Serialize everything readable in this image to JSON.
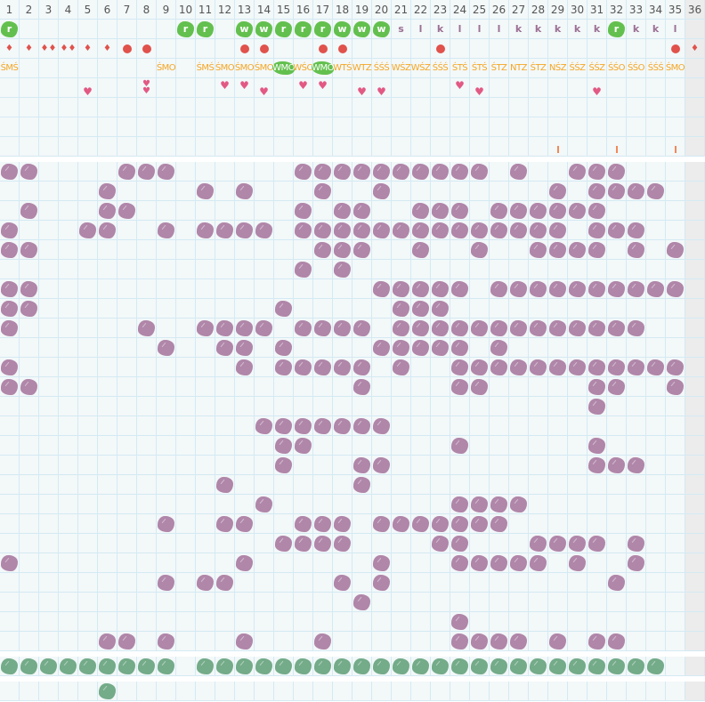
{
  "header": {
    "columns": [
      "1",
      "2",
      "3",
      "4",
      "5",
      "6",
      "7",
      "8",
      "9",
      "10",
      "11",
      "12",
      "13",
      "14",
      "15",
      "16",
      "17",
      "18",
      "19",
      "20",
      "21",
      "22",
      "23",
      "24",
      "25",
      "26",
      "27",
      "28",
      "29",
      "30",
      "31",
      "32",
      "33",
      "34",
      "35",
      "36"
    ]
  },
  "letter_row": [
    {
      "col": 1,
      "text": "r",
      "style": "green"
    },
    {
      "col": 10,
      "text": "r",
      "style": "green"
    },
    {
      "col": 11,
      "text": "r",
      "style": "green"
    },
    {
      "col": 13,
      "text": "w",
      "style": "green"
    },
    {
      "col": 14,
      "text": "w",
      "style": "green"
    },
    {
      "col": 15,
      "text": "r",
      "style": "green"
    },
    {
      "col": 16,
      "text": "r",
      "style": "green"
    },
    {
      "col": 17,
      "text": "r",
      "style": "green"
    },
    {
      "col": 18,
      "text": "w",
      "style": "green"
    },
    {
      "col": 19,
      "text": "w",
      "style": "green"
    },
    {
      "col": 20,
      "text": "w",
      "style": "green"
    },
    {
      "col": 21,
      "text": "s",
      "style": "plain"
    },
    {
      "col": 22,
      "text": "l",
      "style": "plain"
    },
    {
      "col": 23,
      "text": "k",
      "style": "plain"
    },
    {
      "col": 24,
      "text": "l",
      "style": "plain"
    },
    {
      "col": 25,
      "text": "l",
      "style": "plain"
    },
    {
      "col": 26,
      "text": "l",
      "style": "plain"
    },
    {
      "col": 27,
      "text": "k",
      "style": "plain"
    },
    {
      "col": 28,
      "text": "k",
      "style": "plain"
    },
    {
      "col": 29,
      "text": "k",
      "style": "plain"
    },
    {
      "col": 30,
      "text": "k",
      "style": "plain"
    },
    {
      "col": 31,
      "text": "k",
      "style": "plain"
    },
    {
      "col": 32,
      "text": "r",
      "style": "green"
    },
    {
      "col": 33,
      "text": "k",
      "style": "plain"
    },
    {
      "col": 34,
      "text": "k",
      "style": "plain"
    },
    {
      "col": 35,
      "text": "l",
      "style": "plain"
    }
  ],
  "marker_row": [
    {
      "col": 1,
      "icon": "drop-icon",
      "count": 1
    },
    {
      "col": 2,
      "icon": "drop-icon",
      "count": 1
    },
    {
      "col": 3,
      "icon": "drop-icon",
      "count": 2
    },
    {
      "col": 4,
      "icon": "drop-icon",
      "count": 2
    },
    {
      "col": 5,
      "icon": "drop-icon",
      "count": 1
    },
    {
      "col": 6,
      "icon": "drop-icon",
      "count": 1
    },
    {
      "col": 7,
      "icon": "dot-icon",
      "count": 1
    },
    {
      "col": 8,
      "icon": "dot-icon",
      "count": 1
    },
    {
      "col": 13,
      "icon": "dot-icon",
      "count": 1
    },
    {
      "col": 14,
      "icon": "dot-icon",
      "count": 1
    },
    {
      "col": 17,
      "icon": "dot-icon",
      "count": 1
    },
    {
      "col": 18,
      "icon": "dot-icon",
      "count": 1
    },
    {
      "col": 23,
      "icon": "dot-icon",
      "count": 1
    },
    {
      "col": 35,
      "icon": "dot-icon",
      "count": 1
    },
    {
      "col": 36,
      "icon": "drop-icon",
      "count": 1
    }
  ],
  "code_row": [
    {
      "col": 1,
      "text": "ŚMŚ"
    },
    {
      "col": 9,
      "text": "ŚMO"
    },
    {
      "col": 11,
      "text": "ŚMŚ"
    },
    {
      "col": 12,
      "text": "ŚMO"
    },
    {
      "col": 13,
      "text": "ŚMO"
    },
    {
      "col": 14,
      "text": "ŚMO"
    },
    {
      "col": 15,
      "text": "WMO",
      "highlight": true
    },
    {
      "col": 16,
      "text": "WŚO"
    },
    {
      "col": 17,
      "text": "WMO",
      "highlight": true
    },
    {
      "col": 18,
      "text": "WTŚ"
    },
    {
      "col": 19,
      "text": "WTZ"
    },
    {
      "col": 20,
      "text": "ŚŚŚ"
    },
    {
      "col": 21,
      "text": "WŚZ"
    },
    {
      "col": 22,
      "text": "WŚZ"
    },
    {
      "col": 23,
      "text": "ŚŚŚ"
    },
    {
      "col": 24,
      "text": "ŚTŚ"
    },
    {
      "col": 25,
      "text": "ŚTŚ"
    },
    {
      "col": 26,
      "text": "ŚTZ"
    },
    {
      "col": 27,
      "text": "NTZ"
    },
    {
      "col": 28,
      "text": "ŚTZ"
    },
    {
      "col": 29,
      "text": "NŚZ"
    },
    {
      "col": 30,
      "text": "ŚŚZ"
    },
    {
      "col": 31,
      "text": "ŚŚZ"
    },
    {
      "col": 32,
      "text": "ŚŚO"
    },
    {
      "col": 33,
      "text": "ŚŚO"
    },
    {
      "col": 34,
      "text": "ŚŚŚ"
    },
    {
      "col": 35,
      "text": "ŚMO"
    }
  ],
  "heart_row": [
    {
      "col": 5,
      "variant": "low"
    },
    {
      "col": 8,
      "variant": "double"
    },
    {
      "col": 12,
      "variant": "high"
    },
    {
      "col": 13,
      "variant": "high"
    },
    {
      "col": 14,
      "variant": "low"
    },
    {
      "col": 16,
      "variant": "high"
    },
    {
      "col": 17,
      "variant": "high"
    },
    {
      "col": 19,
      "variant": "low"
    },
    {
      "col": 20,
      "variant": "low"
    },
    {
      "col": 24,
      "variant": "high"
    },
    {
      "col": 25,
      "variant": "low"
    },
    {
      "col": 31,
      "variant": "low"
    }
  ],
  "bar_row": [
    29,
    32,
    35
  ],
  "purple_rows": [
    [
      1,
      2,
      7,
      8,
      9,
      16,
      17,
      18,
      19,
      20,
      21,
      22,
      23,
      24,
      25,
      27,
      30,
      31,
      32
    ],
    [
      6,
      11,
      13,
      17,
      20,
      29,
      31,
      32,
      33,
      34
    ],
    [
      2,
      6,
      7,
      16,
      18,
      19,
      22,
      23,
      24,
      26,
      27,
      28,
      29,
      30,
      31
    ],
    [
      1,
      5,
      6,
      9,
      11,
      12,
      13,
      14,
      16,
      17,
      18,
      19,
      20,
      21,
      22,
      23,
      24,
      25,
      26,
      27,
      28,
      29,
      31,
      32,
      33
    ],
    [
      1,
      2,
      17,
      18,
      19,
      22,
      25,
      28,
      29,
      30,
      31,
      33,
      35
    ],
    [
      16,
      18
    ],
    [
      1,
      2,
      20,
      21,
      22,
      23,
      24,
      26,
      27,
      28,
      29,
      30,
      31,
      32,
      33,
      34,
      35
    ],
    [
      1,
      2,
      15,
      21,
      22,
      23
    ],
    [
      1,
      8,
      11,
      12,
      13,
      14,
      16,
      17,
      18,
      19,
      21,
      22,
      23,
      24,
      25,
      26,
      27,
      28,
      29,
      30,
      31,
      32,
      33
    ],
    [
      9,
      12,
      13,
      15,
      20,
      21,
      22,
      23,
      24,
      26
    ],
    [
      1,
      13,
      15,
      16,
      17,
      18,
      19,
      21,
      24,
      25,
      26,
      27,
      28,
      29,
      30,
      31,
      32,
      33,
      34,
      35
    ],
    [
      1,
      2,
      19,
      24,
      25,
      31,
      32,
      35
    ],
    [
      31
    ],
    [
      14,
      15,
      16,
      17,
      18,
      19,
      20
    ],
    [
      15,
      16,
      24,
      31
    ],
    [
      15,
      19,
      20,
      31,
      32,
      33
    ],
    [
      12,
      19
    ],
    [
      14,
      24,
      25,
      26,
      27
    ],
    [
      9,
      12,
      13,
      16,
      17,
      18,
      20,
      21,
      22,
      23,
      24,
      25,
      26
    ],
    [
      15,
      16,
      17,
      18,
      23,
      24,
      28,
      29,
      30,
      31,
      33
    ],
    [
      1,
      13,
      20,
      24,
      25,
      26,
      27,
      28,
      30,
      33
    ],
    [
      9,
      11,
      12,
      18,
      20,
      32
    ],
    [
      19
    ],
    [
      24
    ],
    [
      6,
      7,
      9,
      13,
      17,
      24,
      25,
      26,
      27,
      29,
      31,
      32
    ]
  ],
  "green_row": [
    1,
    2,
    3,
    4,
    5,
    6,
    7,
    8,
    9,
    11,
    12,
    13,
    14,
    15,
    16,
    17,
    18,
    19,
    20,
    21,
    22,
    23,
    24,
    25,
    26,
    27,
    28,
    29,
    30,
    31,
    32,
    33,
    34
  ],
  "last_row": [
    6
  ],
  "colors": {
    "purple": "#b086a9",
    "dark_green": "#74ab89",
    "bright_green": "#63c04e",
    "orange": "#f5a623",
    "red": "#e0524b",
    "pink": "#e25984",
    "grid": "#d4eaf3"
  }
}
